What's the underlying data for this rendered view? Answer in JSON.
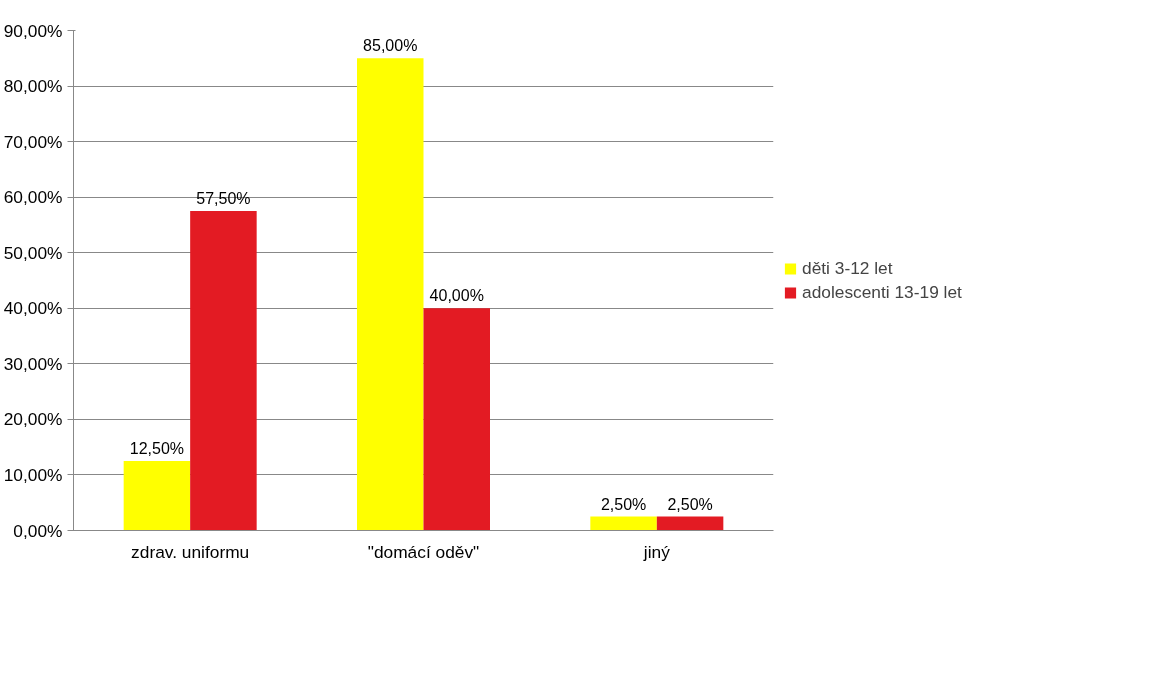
{
  "chart_data": {
    "type": "bar",
    "categories": [
      "zdrav. uniformu",
      "\"domácí oděv\"",
      "jiný"
    ],
    "series": [
      {
        "name": "děti 3-12 let",
        "color": "#ffff00",
        "values": [
          12.5,
          85,
          2.5
        ],
        "value_labels": [
          "12,50%",
          "85,00%",
          "2,50%"
        ]
      },
      {
        "name": "adolescenti 13-19 let",
        "color": "#e31b23",
        "values": [
          57.5,
          40,
          2.5
        ],
        "value_labels": [
          "57,50%",
          "40,00%",
          "2,50%"
        ]
      }
    ],
    "ylim": [
      0,
      90
    ],
    "yticks": [
      {
        "value": 0,
        "label": "0,00%"
      },
      {
        "value": 10,
        "label": "10,00%"
      },
      {
        "value": 20,
        "label": "20,00%"
      },
      {
        "value": 30,
        "label": "30,00%"
      },
      {
        "value": 40,
        "label": "40,00%"
      },
      {
        "value": 50,
        "label": "50,00%"
      },
      {
        "value": 60,
        "label": "60,00%"
      },
      {
        "value": 70,
        "label": "70,00%"
      },
      {
        "value": 80,
        "label": "80,00%"
      },
      {
        "value": 90,
        "label": "90,00%"
      }
    ],
    "grid": "y",
    "legend": "right"
  }
}
